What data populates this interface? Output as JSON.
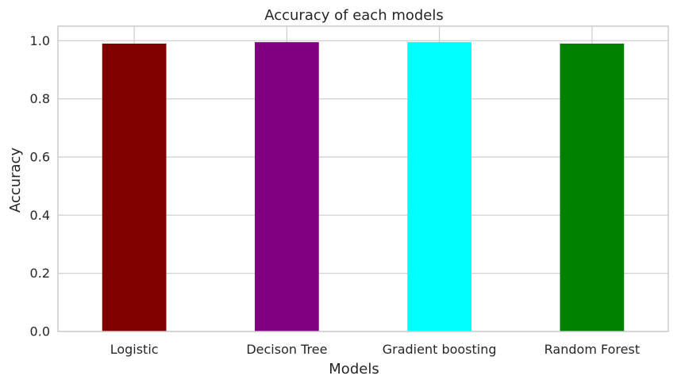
{
  "chart_data": {
    "type": "bar",
    "title": "Accuracy of each models",
    "xlabel": "Models",
    "ylabel": "Accuracy",
    "categories": [
      "Logistic",
      "Decison Tree",
      "Gradient boosting",
      "Random Forest"
    ],
    "values": [
      0.99,
      0.995,
      0.995,
      0.99
    ],
    "colors": [
      "#800000",
      "#800080",
      "#00ffff",
      "#008000"
    ],
    "ylim": [
      0,
      1.05
    ],
    "yticks": [
      0.0,
      0.2,
      0.4,
      0.6,
      0.8,
      1.0
    ],
    "ytick_labels": [
      "0.0",
      "0.2",
      "0.4",
      "0.6",
      "0.8",
      "1.0"
    ],
    "grid": true,
    "grid_color": "#cccccc"
  }
}
